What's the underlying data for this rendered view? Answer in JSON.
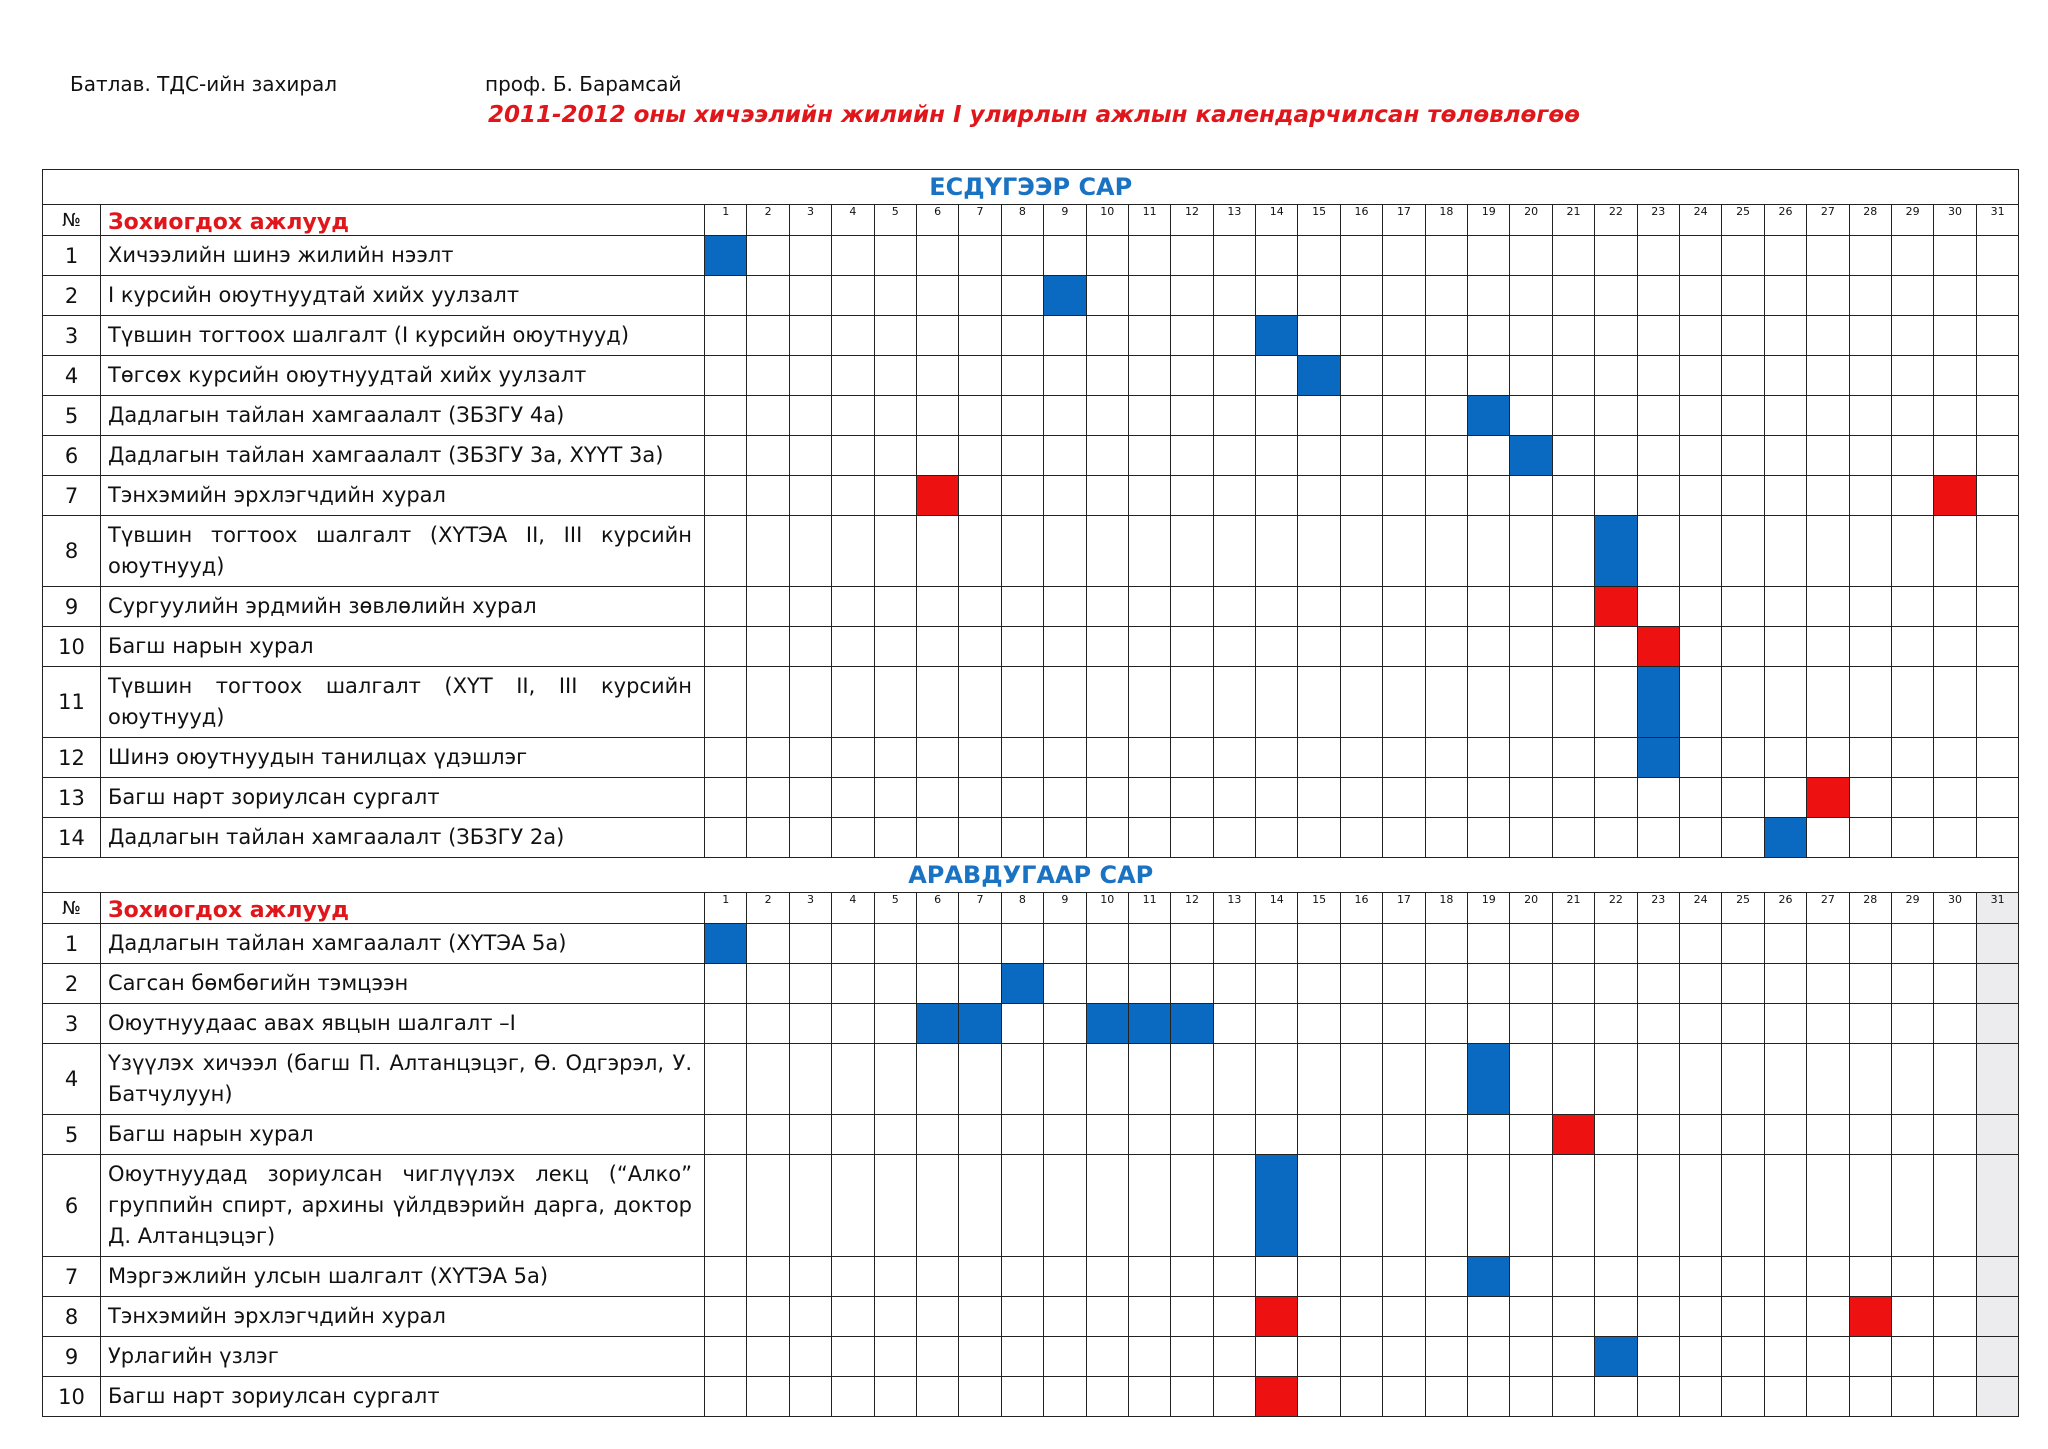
{
  "header": {
    "approve": "Батлав. ТДС-ийн захирал",
    "prof": "проф. Б. Барамсай",
    "title": "2011-2012 оны хичээлийн жилийн I улирлын ажлын календарчилсан төлөвлөгөө"
  },
  "colors": {
    "blue": "#0a6ac2",
    "red": "#ee1111",
    "month_title": "#1a72c2",
    "task_header": "#e0161b"
  },
  "months": [
    {
      "name": "ЕСДҮГЭЭР САР",
      "num_header": "№",
      "task_header": "Зохиогдох ажлууд",
      "days": [
        "1",
        "2",
        "3",
        "4",
        "5",
        "6",
        "7",
        "8",
        "9",
        "10",
        "11",
        "12",
        "13",
        "14",
        "15",
        "16",
        "17",
        "18",
        "19",
        "20",
        "21",
        "22",
        "23",
        "24",
        "25",
        "26",
        "27",
        "28",
        "29",
        "30",
        "31"
      ],
      "shaded_days": [],
      "rows": [
        {
          "num": "1",
          "task": "Хичээлийн шинэ жилийн нээлт",
          "marks": [
            [
              1,
              "blue"
            ]
          ]
        },
        {
          "num": "2",
          "task": "I курсийн оюутнуудтай хийх уулзалт",
          "marks": [
            [
              9,
              "blue"
            ]
          ]
        },
        {
          "num": "3",
          "task": "Түвшин тогтоох шалгалт (I курсийн оюутнууд)",
          "marks": [
            [
              14,
              "blue"
            ]
          ]
        },
        {
          "num": "4",
          "task": "Төгсөх курсийн оюутнуудтай хийх уулзалт",
          "marks": [
            [
              15,
              "blue"
            ]
          ]
        },
        {
          "num": "5",
          "task": "Дадлагын тайлан хамгаалалт (ЗБЗГУ 4а)",
          "marks": [
            [
              19,
              "blue"
            ]
          ]
        },
        {
          "num": "6",
          "task": "Дадлагын тайлан хамгаалалт (ЗБЗГУ 3а, ХҮҮТ 3а)",
          "marks": [
            [
              20,
              "blue"
            ]
          ]
        },
        {
          "num": "7",
          "task": "Тэнхэмийн эрхлэгчдийн хурал",
          "marks": [
            [
              6,
              "red"
            ],
            [
              30,
              "red"
            ]
          ]
        },
        {
          "num": "8",
          "task": "Түвшин тогтоох шалгалт (ХҮТЭА II, III курсийн оюутнууд)",
          "marks": [
            [
              22,
              "blue"
            ]
          ]
        },
        {
          "num": "9",
          "task": "Сургуулийн эрдмийн зөвлөлийн хурал",
          "marks": [
            [
              22,
              "red"
            ]
          ]
        },
        {
          "num": "10",
          "task": "Багш нарын хурал",
          "marks": [
            [
              23,
              "red"
            ]
          ]
        },
        {
          "num": "11",
          "task": "Түвшин тогтоох шалгалт (ХҮТ II, III курсийн оюутнууд)",
          "marks": [
            [
              23,
              "blue"
            ]
          ]
        },
        {
          "num": "12",
          "task": "Шинэ оюутнуудын танилцах үдэшлэг",
          "marks": [
            [
              23,
              "blue"
            ]
          ]
        },
        {
          "num": "13",
          "task": "Багш нарт зориулсан сургалт",
          "marks": [
            [
              27,
              "red"
            ]
          ]
        },
        {
          "num": "14",
          "task": "Дадлагын тайлан хамгаалалт (ЗБЗГУ 2а)",
          "marks": [
            [
              26,
              "blue"
            ]
          ]
        }
      ]
    },
    {
      "name": "АРАВДУГААР САР",
      "num_header": "№",
      "task_header": "Зохиогдох ажлууд",
      "days": [
        "1",
        "2",
        "3",
        "4",
        "5",
        "6",
        "7",
        "8",
        "9",
        "10",
        "11",
        "12",
        "13",
        "14",
        "15",
        "16",
        "17",
        "18",
        "19",
        "20",
        "21",
        "22",
        "23",
        "24",
        "25",
        "26",
        "27",
        "28",
        "29",
        "30",
        "31"
      ],
      "shaded_days": [
        31
      ],
      "rows": [
        {
          "num": "1",
          "task": "Дадлагын тайлан хамгаалалт (ХҮТЭА 5а)",
          "marks": [
            [
              1,
              "blue"
            ]
          ]
        },
        {
          "num": "2",
          "task": "Сагсан бөмбөгийн тэмцээн",
          "marks": [
            [
              8,
              "blue"
            ]
          ]
        },
        {
          "num": "3",
          "task": "Оюутнуудаас авах явцын шалгалт –I",
          "marks": [
            [
              6,
              "blue"
            ],
            [
              7,
              "blue"
            ],
            [
              10,
              "blue"
            ],
            [
              11,
              "blue"
            ],
            [
              12,
              "blue"
            ]
          ]
        },
        {
          "num": "4",
          "task": "Үзүүлэх хичээл (багш П. Алтанцэцэг, Ө. Одгэрэл, У. Батчулуун)",
          "marks": [
            [
              19,
              "blue"
            ]
          ]
        },
        {
          "num": "5",
          "task": "Багш нарын хурал",
          "marks": [
            [
              21,
              "red"
            ]
          ]
        },
        {
          "num": "6",
          "task": "Оюутнуудад зориулсан чиглүүлэх лекц (“Алко” группийн спирт, архины үйлдвэрийн дарга, доктор Д. Алтанцэцэг)",
          "marks": [
            [
              14,
              "blue"
            ]
          ]
        },
        {
          "num": "7",
          "task": "Мэргэжлийн улсын шалгалт (ХҮТЭА 5а)",
          "marks": [
            [
              19,
              "blue"
            ]
          ]
        },
        {
          "num": "8",
          "task": "Тэнхэмийн эрхлэгчдийн хурал",
          "marks": [
            [
              14,
              "red"
            ],
            [
              28,
              "red"
            ]
          ]
        },
        {
          "num": "9",
          "task": "Урлагийн үзлэг",
          "marks": [
            [
              22,
              "blue"
            ]
          ]
        },
        {
          "num": "10",
          "task": "Багш нарт зориулсан сургалт",
          "marks": [
            [
              14,
              "red"
            ]
          ]
        }
      ]
    }
  ]
}
